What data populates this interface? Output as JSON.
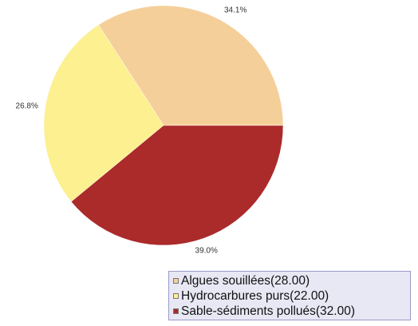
{
  "chart_data": {
    "type": "pie",
    "title": "",
    "slices": [
      {
        "label": "Algues souillées",
        "value": 28.0,
        "percent_label": "34.1%",
        "color": "#f5cf9a"
      },
      {
        "label": "Hydrocarbures purs",
        "value": 22.0,
        "percent_label": "26.8%",
        "color": "#fcf090"
      },
      {
        "label": "Sable-sédiments pollués",
        "value": 32.0,
        "percent_label": "39.0%",
        "color": "#ab2a2a"
      }
    ],
    "legend": {
      "placement": "bottom-right",
      "entries": [
        "Algues souillées(28.00)",
        "Hydrocarbures purs(22.00)",
        "Sable-sédiments pollués(32.00)"
      ]
    }
  }
}
